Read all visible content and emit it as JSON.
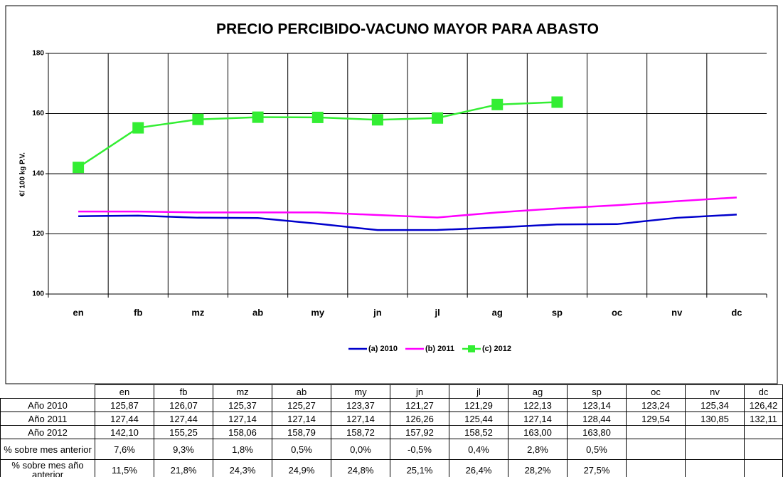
{
  "chart_data": {
    "type": "line",
    "title": "PRECIO PERCIBIDO-VACUNO MAYOR PARA ABASTO",
    "y_label": "€/ 100 kg P.V.",
    "categories": [
      "en",
      "fb",
      "mz",
      "ab",
      "my",
      "jn",
      "jl",
      "ag",
      "sp",
      "oc",
      "nv",
      "dc"
    ],
    "ylim": [
      100,
      180
    ],
    "yticks": [
      100,
      120,
      140,
      160,
      180
    ],
    "grid": true,
    "legend": "bottom",
    "series": [
      {
        "name": "(a) 2010",
        "row_label": "Año 2010",
        "color": "#0000cc",
        "values": [
          125.87,
          126.07,
          125.37,
          125.27,
          123.37,
          121.27,
          121.29,
          122.13,
          123.14,
          123.24,
          125.34,
          126.42
        ],
        "value_labels": [
          "125,87",
          "126,07",
          "125,37",
          "125,27",
          "123,37",
          "121,27",
          "121,29",
          "122,13",
          "123,14",
          "123,24",
          "125,34",
          "126,42"
        ]
      },
      {
        "name": "(b) 2011",
        "row_label": "Año 2011",
        "color": "#ff00ff",
        "values": [
          127.44,
          127.44,
          127.14,
          127.14,
          127.14,
          126.26,
          125.44,
          127.14,
          128.44,
          129.54,
          130.85,
          132.11
        ],
        "value_labels": [
          "127,44",
          "127,44",
          "127,14",
          "127,14",
          "127,14",
          "126,26",
          "125,44",
          "127,14",
          "128,44",
          "129,54",
          "130,85",
          "132,11"
        ]
      },
      {
        "name": "(c) 2012",
        "row_label": "Año 2012",
        "color": "#33ee33",
        "marker": "square",
        "values": [
          142.1,
          155.25,
          158.06,
          158.79,
          158.72,
          157.92,
          158.52,
          163.0,
          163.8,
          null,
          null,
          null
        ],
        "value_labels": [
          "142,10",
          "155,25",
          "158,06",
          "158,79",
          "158,72",
          "157,92",
          "158,52",
          "163,00",
          "163,80",
          null,
          null,
          null
        ]
      }
    ]
  },
  "table": {
    "rows": [
      {
        "label": "% sobre mes anterior",
        "cells": [
          "7,6%",
          "9,3%",
          "1,8%",
          "0,5%",
          "0,0%",
          "-0,5%",
          "0,4%",
          "2,8%",
          "0,5%"
        ]
      },
      {
        "label": "% sobre mes año anterior",
        "cells": [
          "11,5%",
          "21,8%",
          "24,3%",
          "24,9%",
          "24,8%",
          "25,1%",
          "26,4%",
          "28,2%",
          "27,5%"
        ]
      }
    ]
  }
}
